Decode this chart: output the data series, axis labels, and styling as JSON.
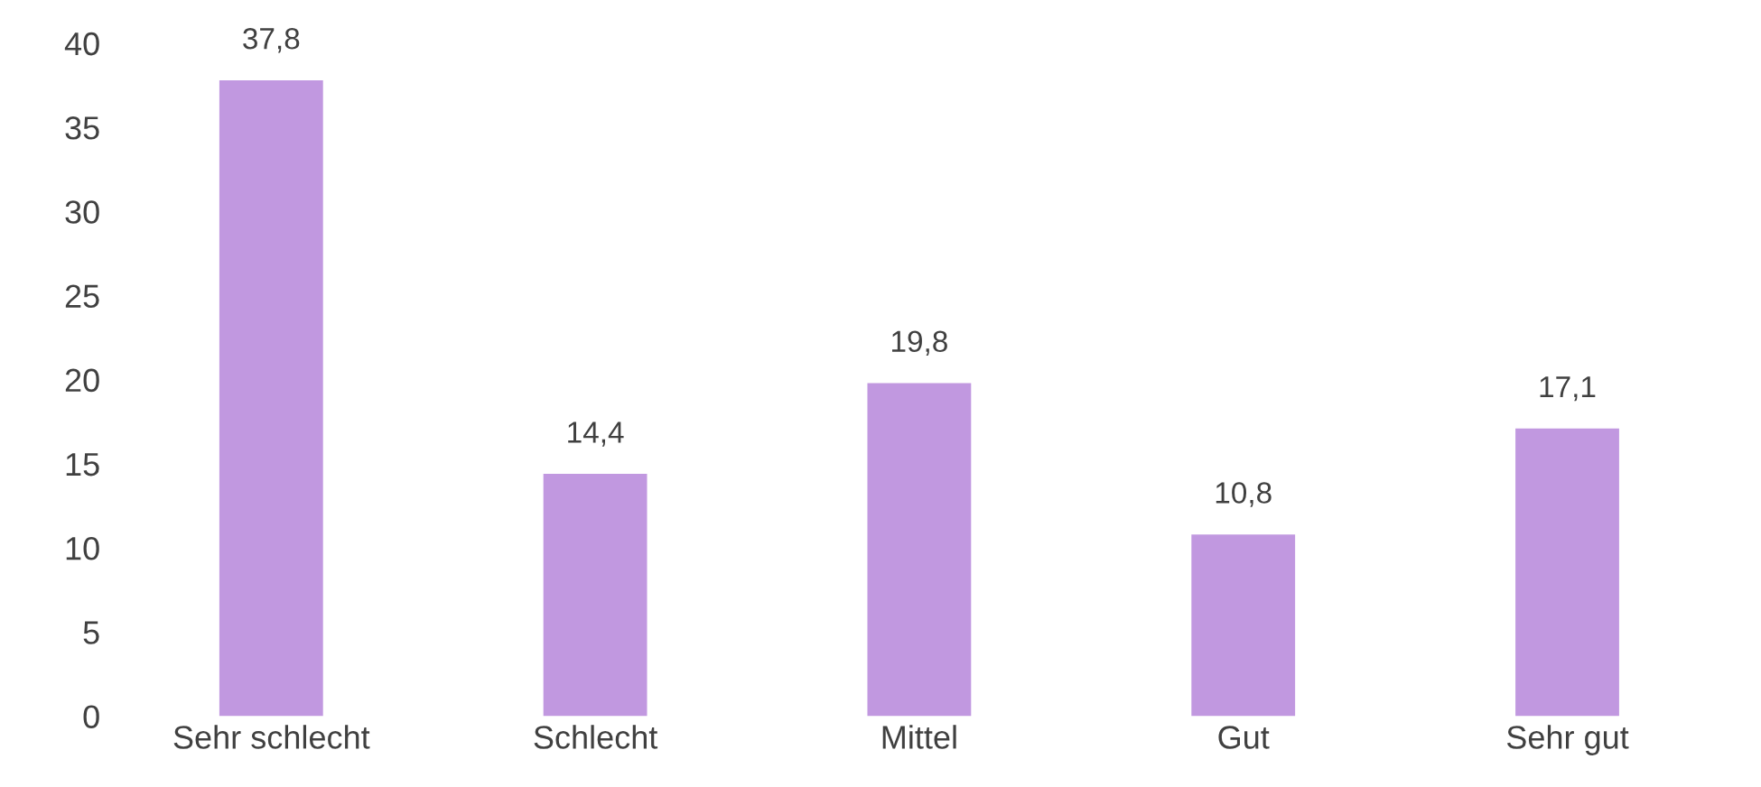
{
  "chart_data": {
    "type": "bar",
    "categories": [
      "Sehr schlecht",
      "Schlecht",
      "Mittel",
      "Gut",
      "Sehr gut"
    ],
    "values": [
      37.8,
      14.4,
      19.8,
      10.8,
      17.1
    ],
    "value_labels": [
      "37,8",
      "14,4",
      "19,8",
      "10,8",
      "17,1"
    ],
    "color": "#c198e0",
    "ylim": [
      0,
      40
    ],
    "yticks": [
      0,
      5,
      10,
      15,
      20,
      25,
      30,
      35,
      40
    ],
    "grid": false
  }
}
